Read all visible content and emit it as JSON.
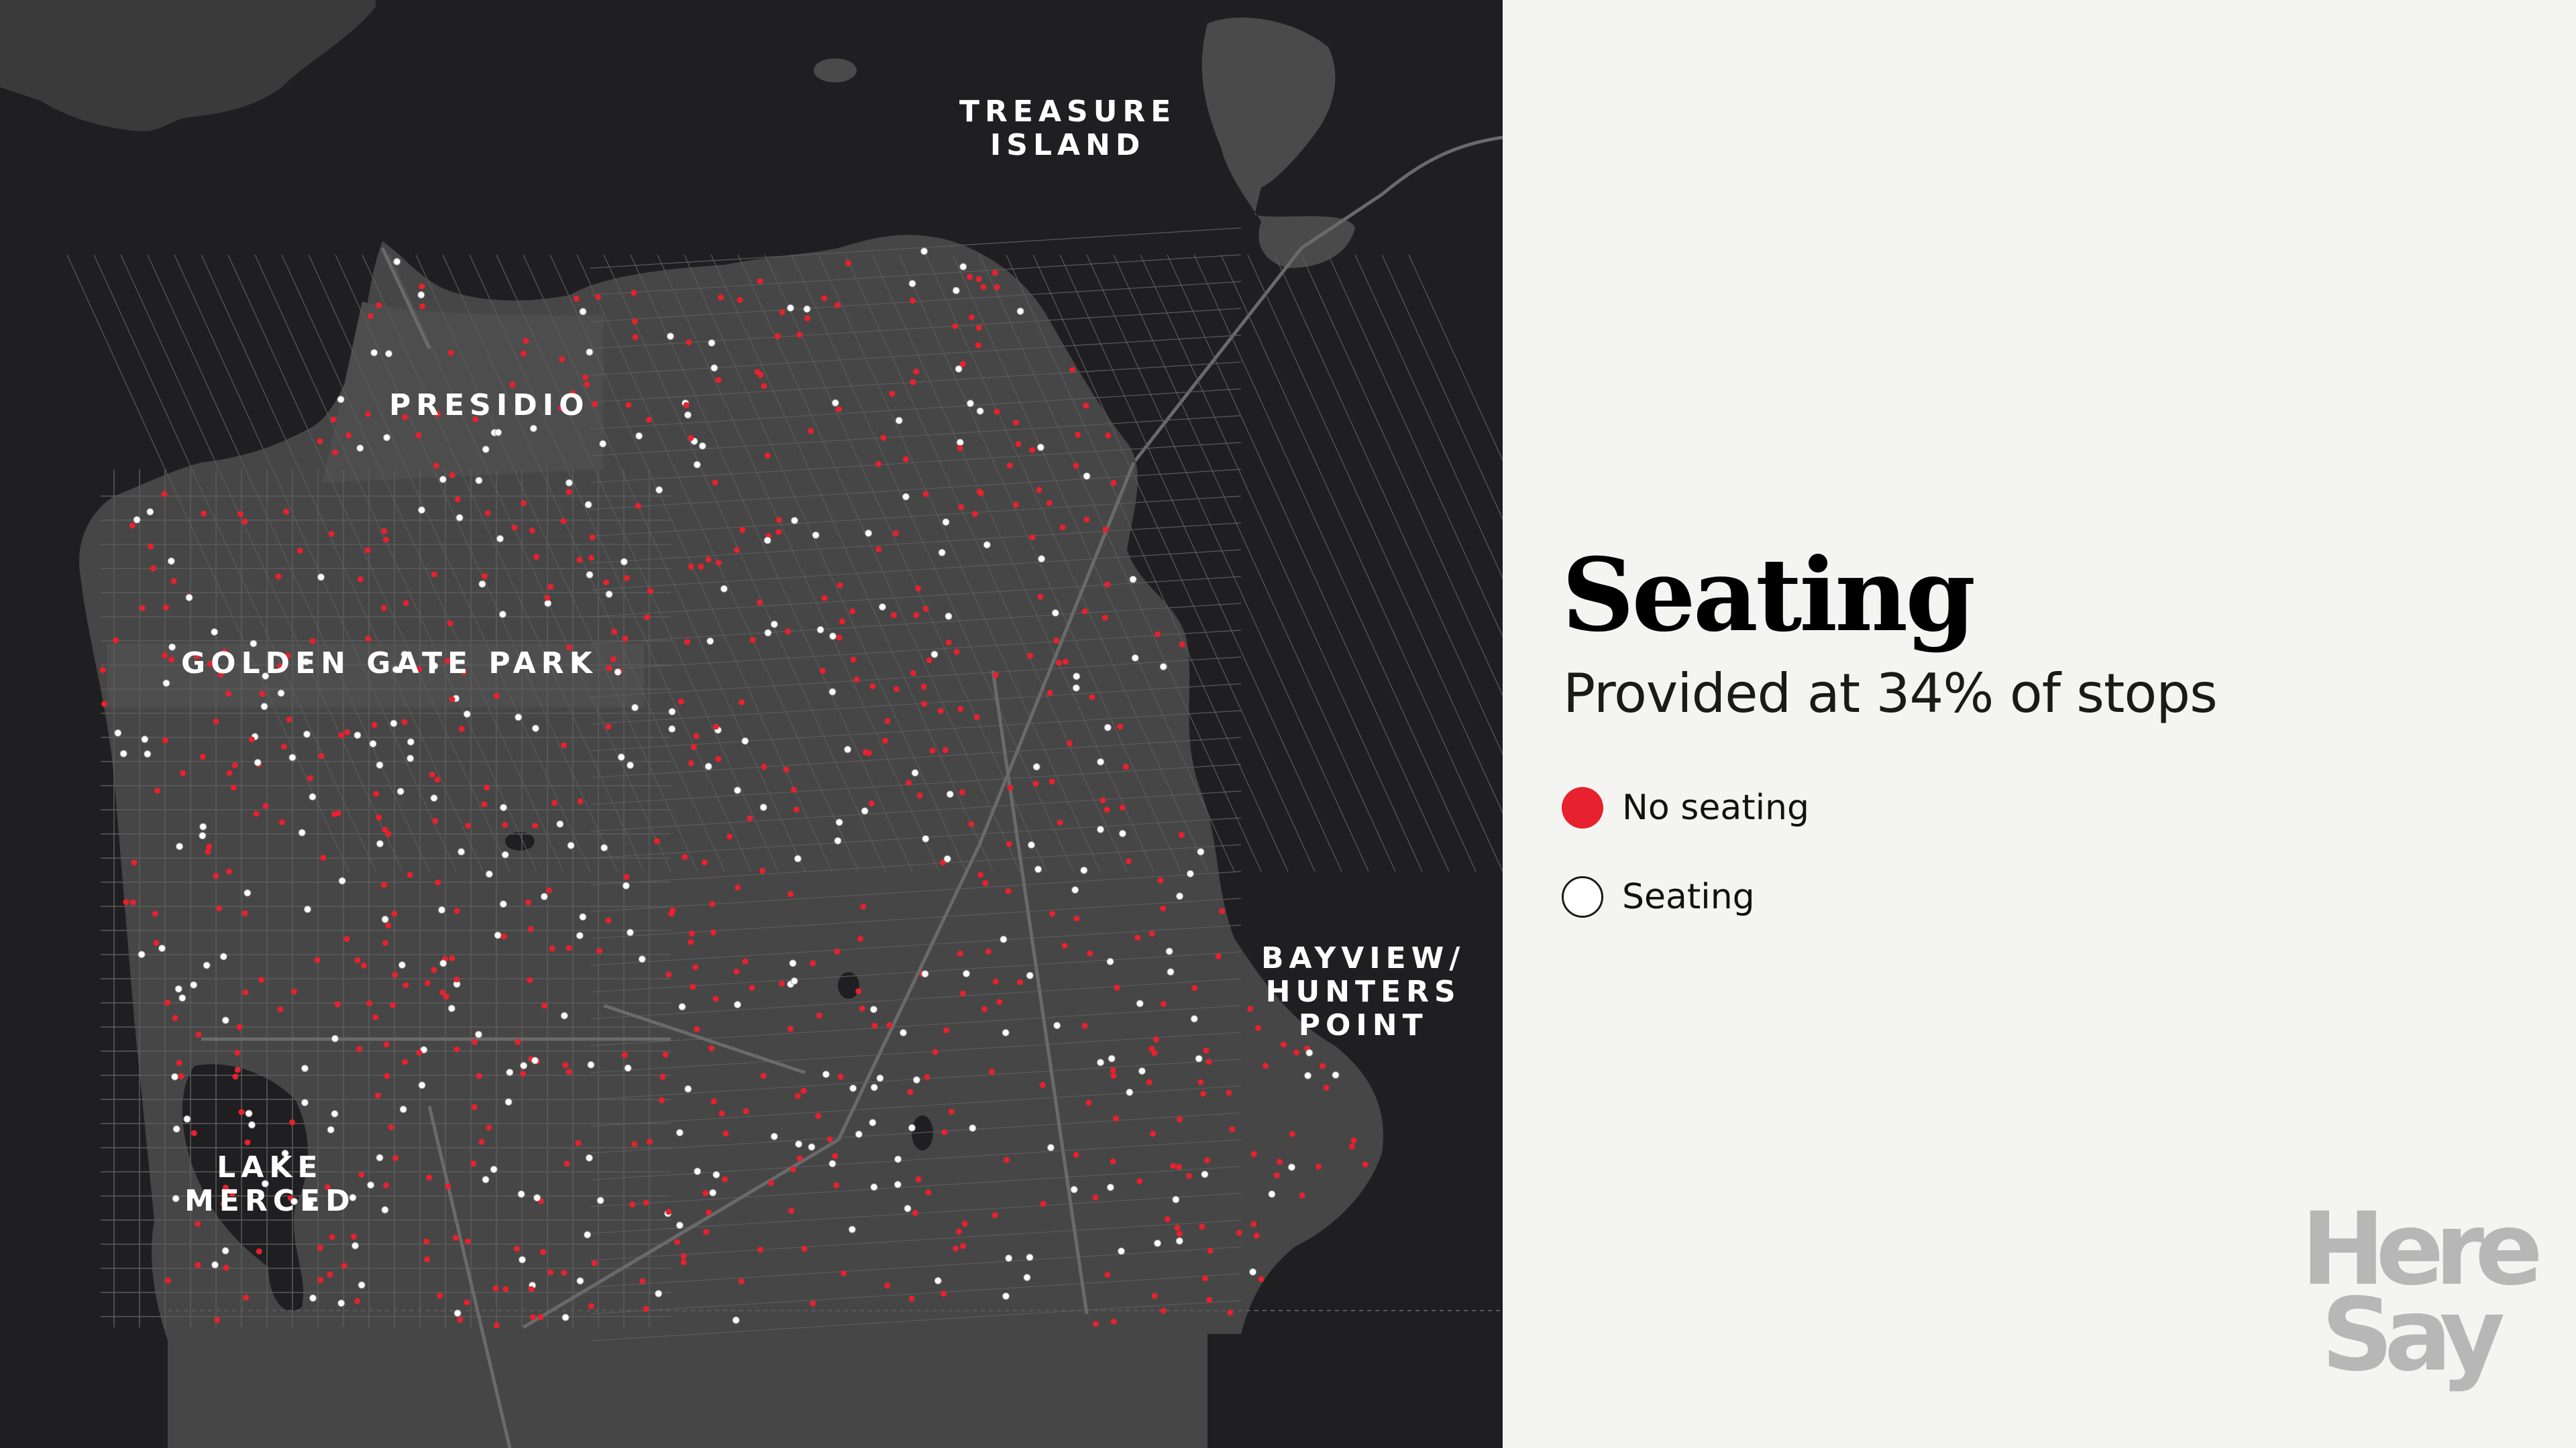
{
  "map": {
    "labels": {
      "treasure_island": "TREASURE\nISLAND",
      "presidio": "PRESIDIO",
      "golden_gate_park": "GOLDEN GATE PARK",
      "bayview": "BAYVIEW/\nHUNTERS\nPOINT",
      "lake_merced": "LAKE\nMERCED"
    },
    "stops": {
      "total_shown": 900,
      "seating_share": 0.34
    }
  },
  "legend": {
    "title": "Seating",
    "subtitle": "Provided at 34% of stops",
    "items": [
      {
        "label": "No seating",
        "color": "#e8212e",
        "fill": "#e8212e"
      },
      {
        "label": "Seating",
        "color": "#1a1a1a",
        "fill": "#ffffff"
      }
    ]
  },
  "brand": {
    "line1": "Here",
    "line2": "Say",
    "color": "#b7b7b7"
  },
  "colors": {
    "background": "#f4f5f3",
    "water": "#1f1f21",
    "land": "#464646",
    "street": "#5c5c5c",
    "no_seating": "#e8212e",
    "seating": "#ffffff"
  }
}
